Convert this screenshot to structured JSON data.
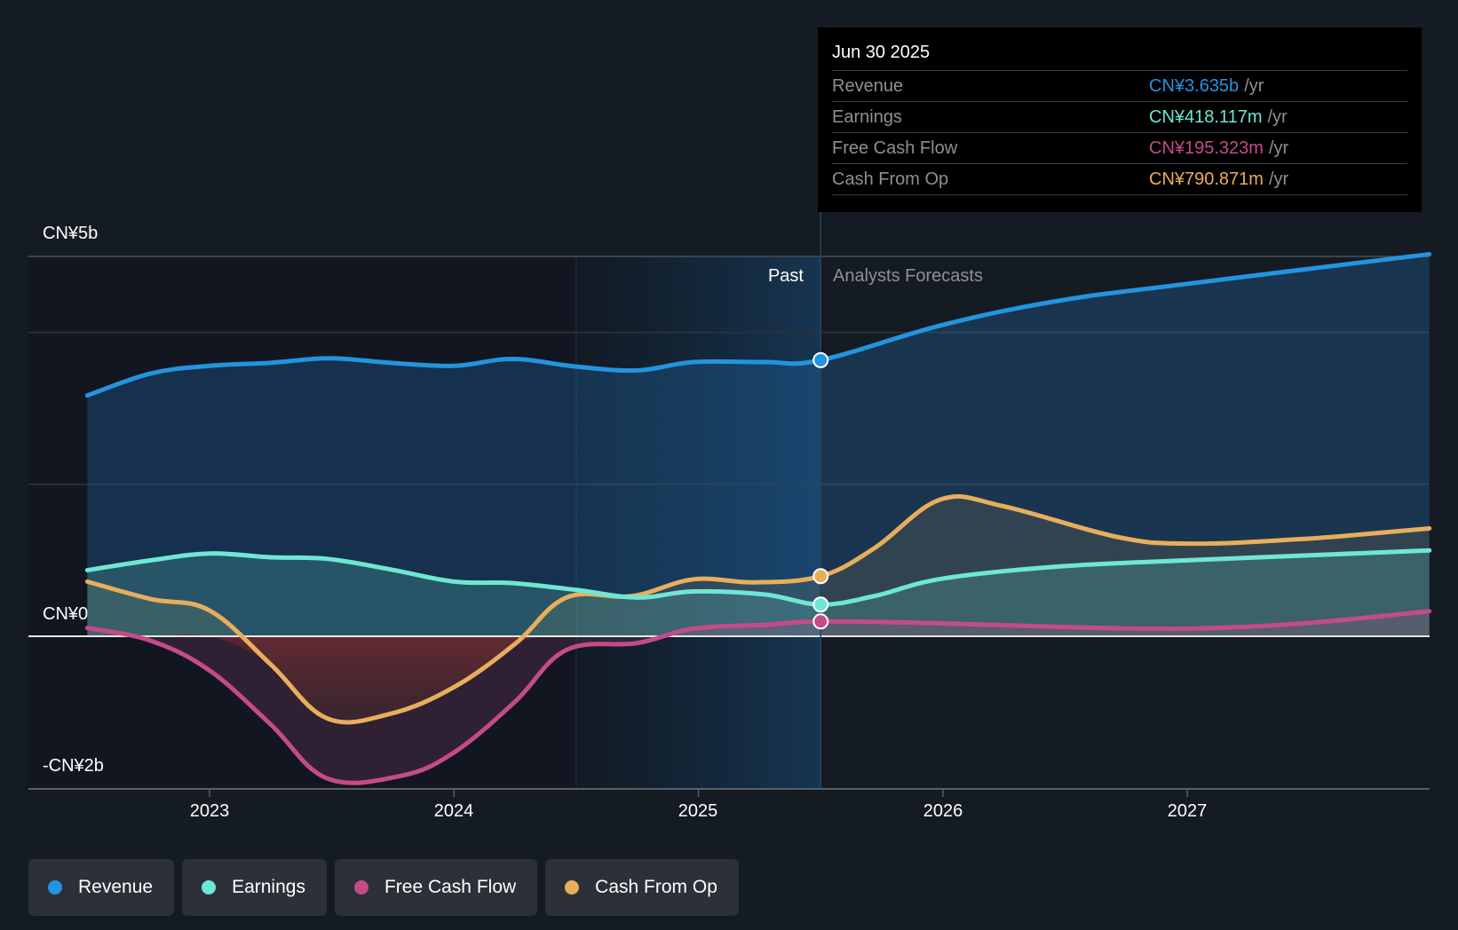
{
  "tooltip": {
    "date": "Jun 30 2025",
    "rows": [
      {
        "label": "Revenue",
        "value": "CN¥3.635b",
        "unit": "/yr",
        "color": "#2394df"
      },
      {
        "label": "Earnings",
        "value": "CN¥418.117m",
        "unit": "/yr",
        "color": "#6ee7d4"
      },
      {
        "label": "Free Cash Flow",
        "value": "CN¥195.323m",
        "unit": "/yr",
        "color": "#c44b8a"
      },
      {
        "label": "Cash From Op",
        "value": "CN¥790.871m",
        "unit": "/yr",
        "color": "#e8ae5c"
      }
    ]
  },
  "regions": {
    "past": "Past",
    "forecast": "Analysts Forecasts"
  },
  "legend": [
    {
      "label": "Revenue",
      "color": "#2394df"
    },
    {
      "label": "Earnings",
      "color": "#6ee7d4"
    },
    {
      "label": "Free Cash Flow",
      "color": "#c44b8a"
    },
    {
      "label": "Cash From Op",
      "color": "#e8ae5c"
    }
  ],
  "chart_data": {
    "type": "area",
    "title": "",
    "xlabel": "",
    "ylabel": "",
    "y_tick_labels": [
      "CN¥5b",
      "CN¥0",
      "-CN¥2b"
    ],
    "y_ticks": [
      5,
      0,
      -2
    ],
    "gridlines": [
      5,
      4,
      2,
      0
    ],
    "ylim": [
      -2,
      5
    ],
    "unit": "CN¥ billions",
    "x_tick_labels": [
      "2023",
      "2024",
      "2025",
      "2026",
      "2027"
    ],
    "x_ticks": [
      2023,
      2024,
      2025,
      2026,
      2027
    ],
    "xlim": [
      2022.26,
      2027.99
    ],
    "past_highlight": [
      2024.5,
      2025.5
    ],
    "divider": 2025.5,
    "hover_date": 2025.5,
    "series": [
      {
        "name": "Revenue",
        "color": "#2394df",
        "x": [
          2022.5,
          2022.76,
          2023.0,
          2023.25,
          2023.49,
          2023.74,
          2024.0,
          2024.24,
          2024.5,
          2024.75,
          2024.98,
          2025.27,
          2025.5,
          2026.0,
          2026.48,
          2027.0,
          2027.99
        ],
        "values": [
          3.17,
          3.46,
          3.56,
          3.6,
          3.66,
          3.6,
          3.56,
          3.65,
          3.55,
          3.5,
          3.61,
          3.61,
          3.635,
          4.1,
          4.42,
          4.64,
          5.03
        ]
      },
      {
        "name": "Earnings",
        "color": "#6ee7d4",
        "x": [
          2022.5,
          2022.76,
          2023.0,
          2023.25,
          2023.48,
          2023.74,
          2024.0,
          2024.24,
          2024.5,
          2024.75,
          2024.98,
          2025.27,
          2025.5,
          2025.72,
          2026.0,
          2026.48,
          2027.0,
          2027.99
        ],
        "values": [
          0.87,
          1.0,
          1.09,
          1.04,
          1.02,
          0.88,
          0.72,
          0.7,
          0.61,
          0.51,
          0.59,
          0.55,
          0.418,
          0.53,
          0.76,
          0.92,
          1.0,
          1.13
        ]
      },
      {
        "name": "Free Cash Flow",
        "color": "#c44b8a",
        "x": [
          2022.5,
          2022.76,
          2023.0,
          2023.25,
          2023.48,
          2023.78,
          2024.0,
          2024.25,
          2024.46,
          2024.75,
          2024.98,
          2025.27,
          2025.5,
          2026.0,
          2026.52,
          2027.0,
          2027.47,
          2027.99
        ],
        "values": [
          0.11,
          -0.06,
          -0.45,
          -1.16,
          -1.87,
          -1.84,
          -1.53,
          -0.86,
          -0.18,
          -0.09,
          0.1,
          0.15,
          0.195,
          0.17,
          0.12,
          0.1,
          0.17,
          0.33
        ]
      },
      {
        "name": "Cash From Op",
        "color": "#e8ae5c",
        "x": [
          2022.5,
          2022.76,
          2023.0,
          2023.25,
          2023.48,
          2023.74,
          2024.0,
          2024.25,
          2024.46,
          2024.73,
          2024.98,
          2025.23,
          2025.5,
          2025.72,
          2025.99,
          2026.25,
          2026.71,
          2027.0,
          2027.47,
          2027.99
        ],
        "values": [
          0.72,
          0.49,
          0.34,
          -0.37,
          -1.08,
          -1.02,
          -0.67,
          -0.1,
          0.51,
          0.53,
          0.75,
          0.71,
          0.791,
          1.16,
          1.8,
          1.71,
          1.31,
          1.22,
          1.28,
          1.42
        ]
      }
    ]
  }
}
